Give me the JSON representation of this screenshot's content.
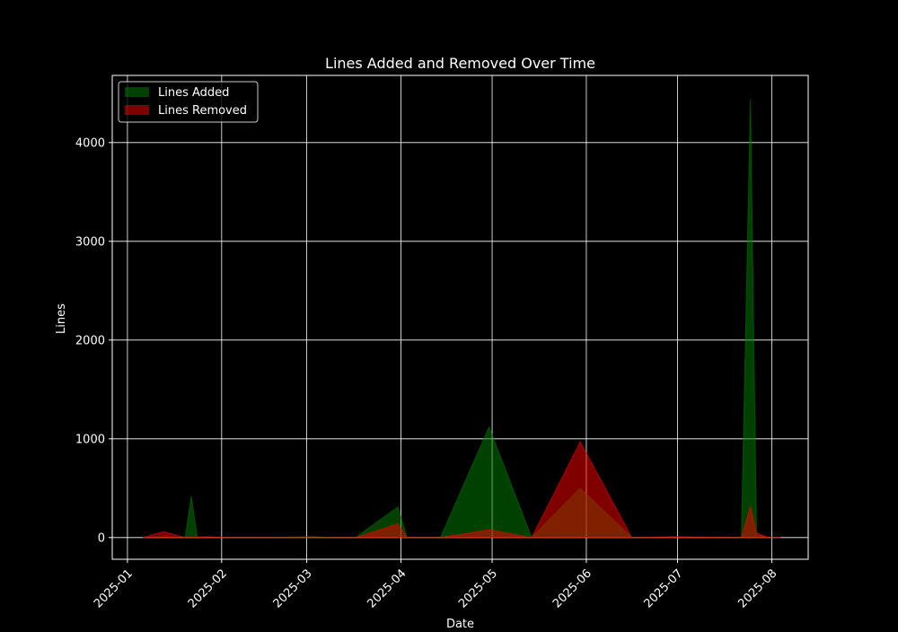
{
  "chart_data": {
    "type": "area",
    "title": "Lines Added and Removed Over Time",
    "xlabel": "Date",
    "ylabel": "Lines",
    "x_ticks": [
      "2025-01",
      "2025-02",
      "2025-03",
      "2025-04",
      "2025-05",
      "2025-06",
      "2025-07",
      "2025-08"
    ],
    "y_ticks": [
      0,
      1000,
      2000,
      3000,
      4000
    ],
    "xlim": [
      "2024-12-27",
      "2025-08-13"
    ],
    "ylim": [
      -220,
      4680
    ],
    "grid": true,
    "legend_position": "top-left",
    "background": "#000000",
    "series": [
      {
        "name": "Lines Added",
        "color": "#008000",
        "points": [
          [
            "2025-01-06",
            0
          ],
          [
            "2025-01-13",
            0
          ],
          [
            "2025-01-20",
            0
          ],
          [
            "2025-01-22",
            420
          ],
          [
            "2025-01-24",
            0
          ],
          [
            "2025-02-03",
            0
          ],
          [
            "2025-02-17",
            0
          ],
          [
            "2025-03-03",
            10
          ],
          [
            "2025-03-10",
            0
          ],
          [
            "2025-03-17",
            0
          ],
          [
            "2025-03-31",
            310
          ],
          [
            "2025-04-03",
            0
          ],
          [
            "2025-04-14",
            0
          ],
          [
            "2025-04-30",
            1120
          ],
          [
            "2025-05-14",
            0
          ],
          [
            "2025-05-30",
            500
          ],
          [
            "2025-06-16",
            0
          ],
          [
            "2025-06-30",
            0
          ],
          [
            "2025-07-22",
            0
          ],
          [
            "2025-07-25",
            4440
          ],
          [
            "2025-07-27",
            30
          ],
          [
            "2025-07-31",
            0
          ],
          [
            "2025-08-04",
            0
          ]
        ]
      },
      {
        "name": "Lines Removed",
        "color": "#ff0000",
        "points": [
          [
            "2025-01-06",
            0
          ],
          [
            "2025-01-13",
            60
          ],
          [
            "2025-01-20",
            0
          ],
          [
            "2025-01-27",
            10
          ],
          [
            "2025-02-03",
            0
          ],
          [
            "2025-02-17",
            0
          ],
          [
            "2025-03-03",
            0
          ],
          [
            "2025-03-17",
            0
          ],
          [
            "2025-03-31",
            140
          ],
          [
            "2025-04-03",
            0
          ],
          [
            "2025-04-14",
            0
          ],
          [
            "2025-04-30",
            80
          ],
          [
            "2025-05-14",
            0
          ],
          [
            "2025-05-30",
            970
          ],
          [
            "2025-06-16",
            0
          ],
          [
            "2025-06-30",
            10
          ],
          [
            "2025-07-22",
            0
          ],
          [
            "2025-07-25",
            320
          ],
          [
            "2025-07-27",
            50
          ],
          [
            "2025-07-31",
            0
          ],
          [
            "2025-08-04",
            0
          ]
        ]
      }
    ]
  }
}
